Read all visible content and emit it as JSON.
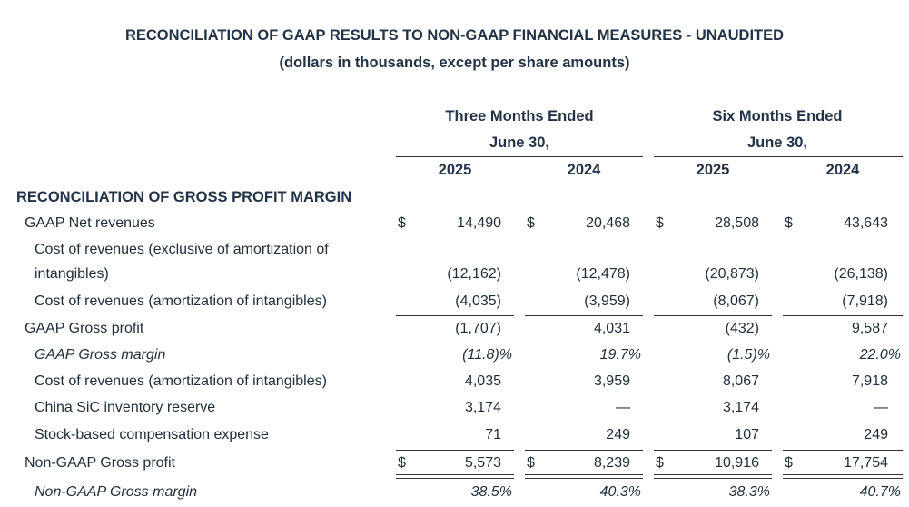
{
  "title": "RECONCILIATION OF GAAP RESULTS TO NON-GAAP FINANCIAL MEASURES - UNAUDITED",
  "subtitle": "(dollars in thousands, except per share amounts)",
  "periods": [
    {
      "line1": "Three Months Ended",
      "line2": "June 30,"
    },
    {
      "line1": "Six Months Ended",
      "line2": "June 30,"
    }
  ],
  "years": [
    "2025",
    "2024",
    "2025",
    "2024"
  ],
  "section_title": "RECONCILIATION OF GROSS PROFIT MARGIN",
  "currency_symbol": "$",
  "rows": [
    {
      "label": "GAAP Net revenues",
      "indent": 1,
      "italic": false,
      "dollar": true,
      "values": [
        "14,490",
        "20,468",
        "28,508",
        "43,643"
      ]
    },
    {
      "label": "Cost of revenues (exclusive of amortization of",
      "label2": "intangibles)",
      "indent": 2,
      "italic": false,
      "dollar": false,
      "values": [
        "(12,162)",
        "(12,478)",
        "(20,873)",
        "(26,138)"
      ]
    },
    {
      "label": "Cost of revenues (amortization of intangibles)",
      "indent": 2,
      "italic": false,
      "dollar": false,
      "values": [
        "(4,035)",
        "(3,959)",
        "(8,067)",
        "(7,918)"
      ]
    },
    {
      "label": "GAAP Gross profit",
      "indent": 1,
      "italic": false,
      "dollar": false,
      "values": [
        "(1,707)",
        "4,031",
        "(432)",
        "9,587"
      ]
    },
    {
      "label": "GAAP Gross margin",
      "indent": 2,
      "italic": true,
      "dollar": false,
      "values": [
        "(11.8)%",
        "19.7%",
        "(1.5)%",
        "22.0%"
      ]
    },
    {
      "label": "Cost of revenues (amortization of intangibles)",
      "indent": 2,
      "italic": false,
      "dollar": false,
      "values": [
        "4,035",
        "3,959",
        "8,067",
        "7,918"
      ]
    },
    {
      "label": "China SiC inventory reserve",
      "indent": 2,
      "italic": false,
      "dollar": false,
      "values": [
        "3,174",
        "—",
        "3,174",
        "—"
      ]
    },
    {
      "label": "Stock-based compensation expense",
      "indent": 2,
      "italic": false,
      "dollar": false,
      "values": [
        "71",
        "249",
        "107",
        "249"
      ]
    },
    {
      "label": "Non-GAAP Gross profit",
      "indent": 1,
      "italic": false,
      "dollar": true,
      "values": [
        "5,573",
        "8,239",
        "10,916",
        "17,754"
      ]
    },
    {
      "label": "Non-GAAP Gross margin",
      "indent": 2,
      "italic": true,
      "dollar": false,
      "values": [
        "38.5%",
        "40.3%",
        "38.3%",
        "40.7%"
      ]
    }
  ]
}
